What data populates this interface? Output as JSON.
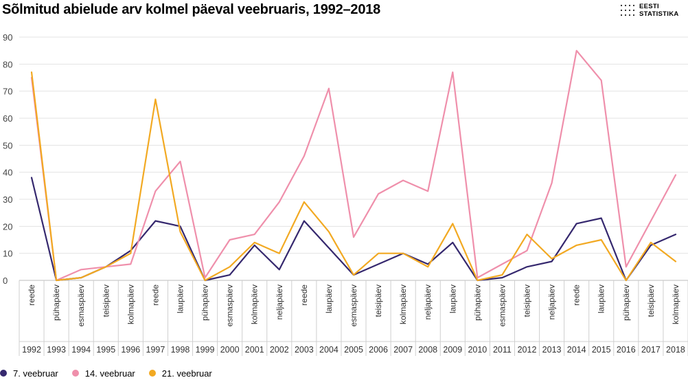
{
  "chart_data": {
    "type": "line",
    "title": "Sõlmitud abielude arv kolmel päeval veebruaris, 1992–2018",
    "logo": {
      "line1": "EESTI",
      "line2": "STATISTIKA"
    },
    "ylim": [
      0,
      90
    ],
    "yticks": [
      0,
      10,
      20,
      30,
      40,
      50,
      60,
      70,
      80,
      90
    ],
    "grid": true,
    "legend_position": "bottom-left",
    "years": [
      "1992",
      "1993",
      "1994",
      "1995",
      "1996",
      "1997",
      "1998",
      "1999",
      "2000",
      "2001",
      "2002",
      "2003",
      "2004",
      "2005",
      "2006",
      "2007",
      "2008",
      "2009",
      "2010",
      "2011",
      "2012",
      "2013",
      "2014",
      "2015",
      "2016",
      "2017",
      "2018"
    ],
    "weekdays": [
      "reede",
      "pühapäev",
      "esmaspäev",
      "teisipäev",
      "kolmapäev",
      "reede",
      "laupäev",
      "pühapäev",
      "esmaspäev",
      "kolmapäev",
      "neljapäev",
      "reede",
      "laupäev",
      "esmaspäev",
      "teisipäev",
      "kolmapäev",
      "neljapäev",
      "laupäev",
      "pühapäev",
      "esmaspäev",
      "teisipäev",
      "neljapäev",
      "reede",
      "laupäev",
      "pühapäev",
      "teisipäev",
      "kolmapäev"
    ],
    "series": [
      {
        "name": "7. veebruar",
        "color": "#35286e",
        "values": [
          38,
          0,
          1,
          5,
          11,
          22,
          20,
          0,
          2,
          13,
          4,
          22,
          12,
          2,
          6,
          10,
          6,
          14,
          0,
          1,
          5,
          7,
          21,
          23,
          0,
          13,
          17
        ]
      },
      {
        "name": "14. veebruar",
        "color": "#ef8fab",
        "values": [
          75,
          0,
          4,
          5,
          6,
          33,
          44,
          1,
          15,
          17,
          29,
          46,
          71,
          16,
          32,
          37,
          33,
          77,
          1,
          6,
          11,
          36,
          85,
          74,
          5,
          22,
          39
        ]
      },
      {
        "name": "21. veebruar",
        "color": "#f2a922",
        "values": [
          77,
          0,
          1,
          5,
          10,
          67,
          18,
          0,
          5,
          14,
          10,
          29,
          18,
          2,
          10,
          10,
          5,
          21,
          0,
          2,
          17,
          8,
          13,
          15,
          0,
          14,
          7
        ]
      }
    ]
  }
}
